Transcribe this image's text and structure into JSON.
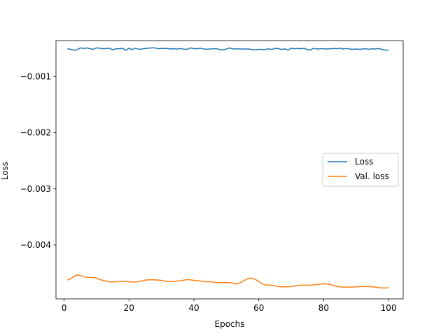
{
  "chart_data": {
    "type": "line",
    "title": "",
    "xlabel": "Epochs",
    "ylabel": "Loss",
    "xlim": [
      -2.5,
      104.5
    ],
    "ylim": [
      -0.00496,
      -0.00036
    ],
    "xticks": [
      0,
      20,
      40,
      60,
      80,
      100
    ],
    "xtick_labels": [
      "0",
      "20",
      "40",
      "60",
      "80",
      "100"
    ],
    "yticks": [
      -0.001,
      -0.002,
      -0.003,
      -0.004
    ],
    "ytick_labels": [
      "−0.001",
      "−0.002",
      "−0.003",
      "−0.004"
    ],
    "grid": false,
    "legend_position": "center-right",
    "series": [
      {
        "name": "Loss",
        "color": "#1f77b4",
        "x": [
          1,
          2,
          3,
          4,
          5,
          6,
          7,
          8,
          9,
          10,
          11,
          12,
          13,
          14,
          15,
          16,
          17,
          18,
          19,
          20,
          21,
          22,
          23,
          24,
          25,
          26,
          27,
          28,
          29,
          30,
          31,
          32,
          33,
          34,
          35,
          36,
          37,
          38,
          39,
          40,
          41,
          42,
          43,
          44,
          45,
          46,
          47,
          48,
          49,
          50,
          51,
          52,
          53,
          54,
          55,
          56,
          57,
          58,
          59,
          60,
          61,
          62,
          63,
          64,
          65,
          66,
          67,
          68,
          69,
          70,
          71,
          72,
          73,
          74,
          75,
          76,
          77,
          78,
          79,
          80,
          81,
          82,
          83,
          84,
          85,
          86,
          87,
          88,
          89,
          90,
          91,
          92,
          93,
          94,
          95,
          96,
          97,
          98,
          99,
          100
        ],
        "y": [
          -0.000505,
          -0.000515,
          -0.00053,
          -0.000525,
          -0.00049,
          -0.0005,
          -0.00049,
          -0.000505,
          -0.000515,
          -0.00049,
          -0.000495,
          -0.000505,
          -0.0005,
          -0.000495,
          -0.000525,
          -0.000505,
          -0.000505,
          -0.000495,
          -0.000535,
          -0.000495,
          -0.00052,
          -0.000495,
          -0.000515,
          -0.00051,
          -0.0005,
          -0.000495,
          -0.00049,
          -0.00049,
          -0.000505,
          -0.0005,
          -0.0005,
          -0.0005,
          -0.00051,
          -0.000505,
          -0.00051,
          -0.0005,
          -0.000515,
          -0.000515,
          -0.00049,
          -0.000505,
          -0.000505,
          -0.000495,
          -0.00051,
          -0.000515,
          -0.00051,
          -0.000505,
          -0.000505,
          -0.00052,
          -0.000525,
          -0.00051,
          -0.00049,
          -0.00051,
          -0.000505,
          -0.00051,
          -0.00051,
          -0.00051,
          -0.00051,
          -0.00052,
          -0.000525,
          -0.000515,
          -0.00052,
          -0.00052,
          -0.000505,
          -0.00052,
          -0.0005,
          -0.0005,
          -0.00052,
          -0.000505,
          -0.00053,
          -0.000495,
          -0.000505,
          -0.0005,
          -0.000505,
          -0.000495,
          -0.000525,
          -0.000525,
          -0.000495,
          -0.00051,
          -0.000505,
          -0.000505,
          -0.00051,
          -0.000505,
          -0.0005,
          -0.000505,
          -0.000495,
          -0.00051,
          -0.0005,
          -0.00051,
          -0.000515,
          -0.00051,
          -0.000515,
          -0.00051,
          -0.000505,
          -0.000515,
          -0.000505,
          -0.00051,
          -0.0005,
          -0.00052,
          -0.00053,
          -0.00053
        ]
      },
      {
        "name": "Val. loss",
        "color": "#ff7f0e",
        "x": [
          1,
          2,
          3,
          4,
          5,
          6,
          7,
          8,
          9,
          10,
          11,
          12,
          13,
          14,
          15,
          16,
          17,
          18,
          19,
          20,
          21,
          22,
          23,
          24,
          25,
          26,
          27,
          28,
          29,
          30,
          31,
          32,
          33,
          34,
          35,
          36,
          37,
          38,
          39,
          40,
          41,
          42,
          43,
          44,
          45,
          46,
          47,
          48,
          49,
          50,
          51,
          52,
          53,
          54,
          55,
          56,
          57,
          58,
          59,
          60,
          61,
          62,
          63,
          64,
          65,
          66,
          67,
          68,
          69,
          70,
          71,
          72,
          73,
          74,
          75,
          76,
          77,
          78,
          79,
          80,
          81,
          82,
          83,
          84,
          85,
          86,
          87,
          88,
          89,
          90,
          91,
          92,
          93,
          94,
          95,
          96,
          97,
          98,
          99,
          100
        ],
        "y": [
          -0.004625,
          -0.0046,
          -0.00456,
          -0.004535,
          -0.004545,
          -0.004565,
          -0.004575,
          -0.00458,
          -0.00458,
          -0.00459,
          -0.004615,
          -0.00463,
          -0.004645,
          -0.004655,
          -0.00466,
          -0.004655,
          -0.00465,
          -0.00465,
          -0.00465,
          -0.004655,
          -0.00466,
          -0.00466,
          -0.00465,
          -0.00464,
          -0.004625,
          -0.00462,
          -0.00462,
          -0.00462,
          -0.004625,
          -0.00463,
          -0.004645,
          -0.00465,
          -0.00465,
          -0.004645,
          -0.00464,
          -0.004635,
          -0.004625,
          -0.004615,
          -0.00462,
          -0.00463,
          -0.004635,
          -0.00464,
          -0.00465,
          -0.004655,
          -0.004655,
          -0.00466,
          -0.00467,
          -0.00467,
          -0.00467,
          -0.00467,
          -0.00467,
          -0.00468,
          -0.004695,
          -0.00468,
          -0.00465,
          -0.004615,
          -0.00459,
          -0.004595,
          -0.004615,
          -0.00465,
          -0.00469,
          -0.00471,
          -0.004715,
          -0.004715,
          -0.004725,
          -0.00474,
          -0.004745,
          -0.004745,
          -0.004745,
          -0.00474,
          -0.00473,
          -0.00472,
          -0.004715,
          -0.004715,
          -0.004715,
          -0.004715,
          -0.00471,
          -0.004705,
          -0.004695,
          -0.00469,
          -0.004695,
          -0.004705,
          -0.00472,
          -0.004735,
          -0.004745,
          -0.00475,
          -0.00475,
          -0.00475,
          -0.00475,
          -0.004745,
          -0.00474,
          -0.00474,
          -0.00474,
          -0.00474,
          -0.004745,
          -0.00475,
          -0.00476,
          -0.004765,
          -0.004765,
          -0.00476
        ]
      }
    ]
  }
}
